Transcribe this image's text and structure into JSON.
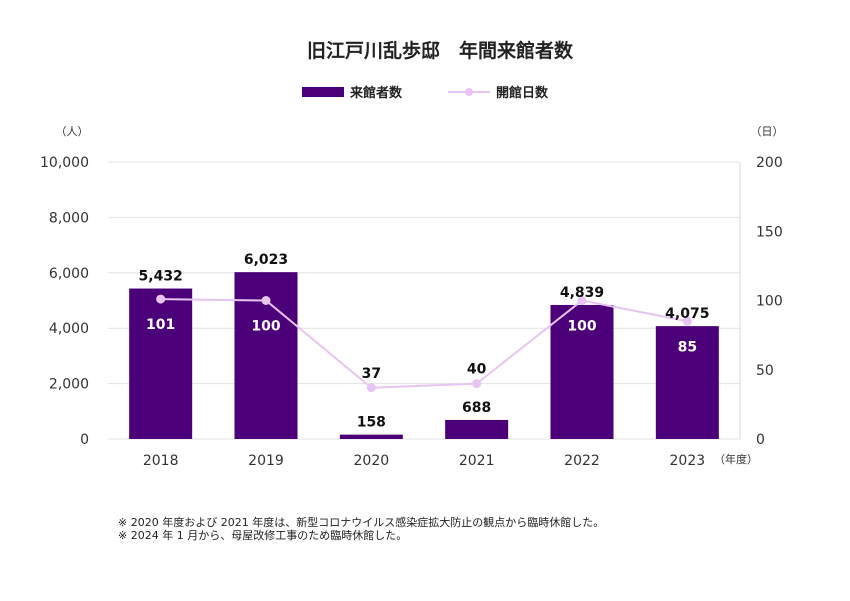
{
  "chart_data": {
    "type": "bar",
    "title": "旧江戸川乱歩邸　年間来館者数",
    "categories": [
      "2018",
      "2019",
      "2020",
      "2021",
      "2022",
      "2023"
    ],
    "series": [
      {
        "name": "来館者数",
        "kind": "bar",
        "axis": "left",
        "color": "#4b0079",
        "values": [
          5432,
          6023,
          158,
          688,
          4839,
          4075
        ]
      },
      {
        "name": "開館日数",
        "kind": "line",
        "axis": "right",
        "color": "#e8c4f2",
        "values": [
          101,
          100,
          37,
          40,
          100,
          85
        ]
      }
    ],
    "ylim_left": [
      0,
      10000
    ],
    "ylim_right": [
      0,
      200
    ],
    "yticks_left": [
      "0",
      "2,000",
      "4,000",
      "6,000",
      "8,000",
      "10,000"
    ],
    "yticks_right": [
      "0",
      "50",
      "100",
      "150",
      "200"
    ],
    "ylabel_left": "（人）",
    "ylabel_right": "（日）",
    "xlabel": "（年度）",
    "bar_labels": [
      "5,432",
      "6,023",
      "158",
      "688",
      "4,839",
      "4,075"
    ],
    "line_labels": [
      "101",
      "100",
      "37",
      "40",
      "100",
      "85"
    ],
    "grid": true,
    "legend": "top-center"
  },
  "footnotes": [
    "※ 2020 年度および 2021 年度は、新型コロナウイルス感染症拡大防止の観点から臨時休館した。",
    "※ 2024 年 1 月から、母屋改修工事のため臨時休館した。"
  ]
}
